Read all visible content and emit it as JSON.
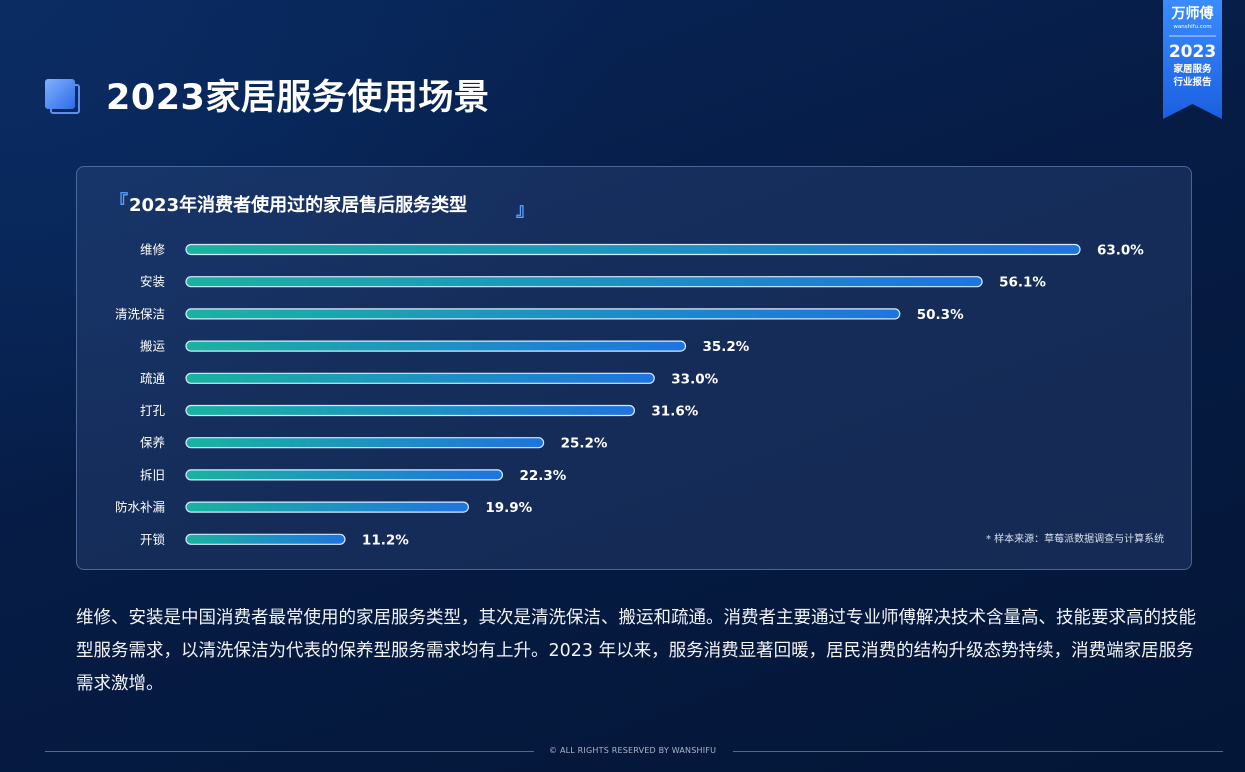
{
  "page": {
    "title": "2023家居服务使用场景"
  },
  "badge": {
    "brand": "万师傅",
    "url": "wanshifu.com",
    "year": "2023",
    "line1": "家居服务",
    "line2": "行业报告"
  },
  "chart_data": {
    "type": "bar",
    "orientation": "horizontal",
    "title": "2023年消费者使用过的家居售后服务类型",
    "title_open_bracket": "『",
    "title_close_bracket": "』",
    "categories": [
      "维修",
      "安装",
      "清洗保洁",
      "搬运",
      "疏通",
      "打孔",
      "保养",
      "拆旧",
      "防水补漏",
      "开锁"
    ],
    "values": [
      63.0,
      56.1,
      50.3,
      35.2,
      33.0,
      31.6,
      25.2,
      22.3,
      19.9,
      11.2
    ],
    "value_suffix": "%",
    "xlim": [
      0,
      63.0
    ],
    "grid": false,
    "bar_gradient": [
      "#19b3a0",
      "#1f74e0"
    ],
    "note": "* 样本来源：草莓派数据调查与计算系统"
  },
  "description": "维修、安装是中国消费者最常使用的家居服务类型，其次是清洗保洁、搬运和疏通。消费者主要通过专业师傅解决技术含量高、技能要求高的技能型服务需求，以清洗保洁为代表的保养型服务需求均有上升。2023 年以来，服务消费显著回暖，居民消费的结构升级态势持续，消费端家居服务需求激增。",
  "footer": "© ALL RIGHTS RESERVED BY WANSHIFU",
  "colors": {
    "accent": "#5aa2ff",
    "background": "#061c45"
  }
}
